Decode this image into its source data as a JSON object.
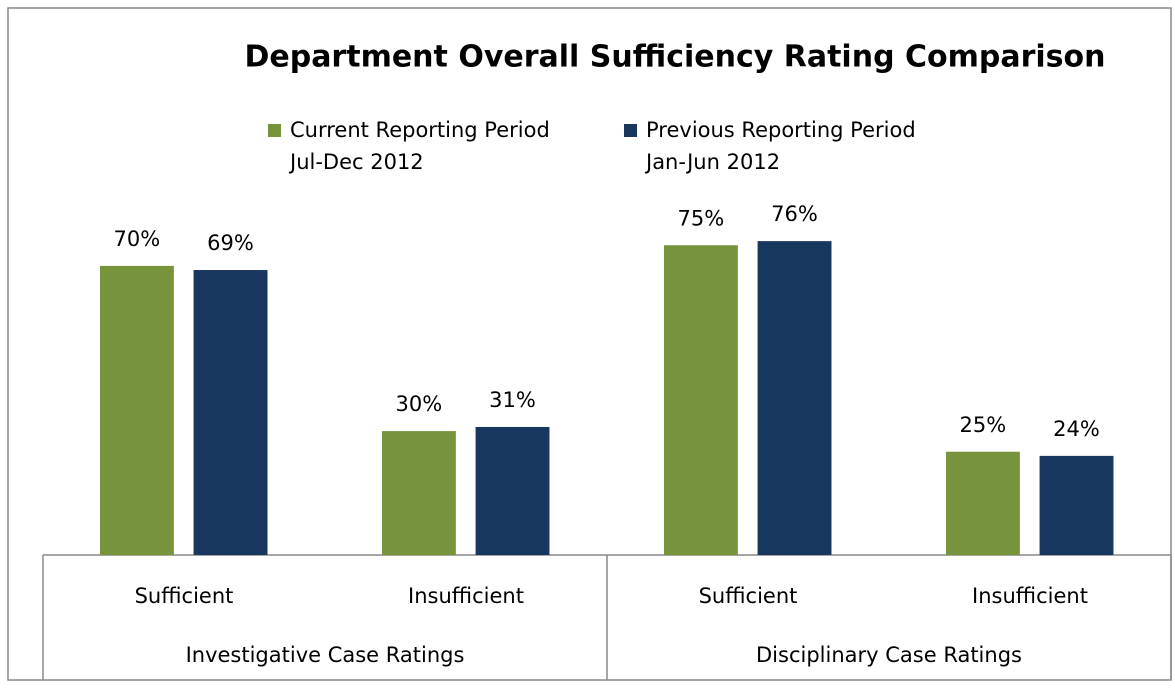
{
  "chart_data": {
    "type": "bar",
    "title": "Department Overall Sufficiency Rating Comparison",
    "categories": [
      "Sufficient",
      "Insufficient",
      "Sufficient",
      "Insufficient"
    ],
    "groups": [
      "Investigative Case Ratings",
      "Disciplinary Case Ratings"
    ],
    "series": [
      {
        "name": "Current Reporting Period\nJul-Dec 2012",
        "color": "#77933c",
        "values": [
          70,
          30,
          75,
          25
        ],
        "value_labels": [
          "70%",
          "30%",
          "75%",
          "25%"
        ]
      },
      {
        "name": "Previous Reporting Period\nJan-Jun 2012",
        "color": "#17375e",
        "values": [
          69,
          31,
          76,
          24
        ],
        "value_labels": [
          "69%",
          "31%",
          "76%",
          "24%"
        ]
      }
    ],
    "ylim": [
      0,
      100
    ]
  }
}
